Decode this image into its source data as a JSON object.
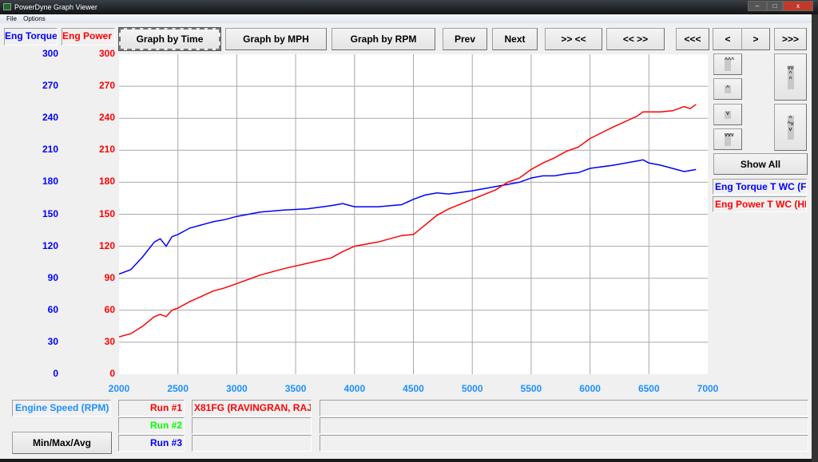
{
  "window": {
    "title": "PowerDyne Graph Viewer",
    "minimize": "–",
    "maximize": "□",
    "close": "x"
  },
  "menu": [
    "File",
    "Options"
  ],
  "toolbar": {
    "graph_by_time": "Graph by Time",
    "graph_by_mph": "Graph by MPH",
    "graph_by_rpm": "Graph by RPM",
    "prev": "Prev",
    "next": "Next",
    "zoom_in": ">> <<",
    "zoom_out": "<< >>",
    "first": "<<<",
    "left": "<",
    "right": ">",
    "last": ">>>"
  },
  "axis_titles": {
    "left1": "Eng Torque",
    "left2": "Eng Power",
    "x": "Engine Speed (RPM)"
  },
  "side": {
    "scroll_up_fast": "^^^",
    "scroll_up": "^",
    "scroll_down": "v",
    "scroll_down_fast": "vvv",
    "expand": "vv^^",
    "shrink": "^^vv",
    "show_all": "Show All",
    "legend": [
      "Eng Torque T WC (F",
      "Eng Power T WC (HI"
    ]
  },
  "bottom": {
    "minmax": "Min/Max/Avg",
    "runs": [
      {
        "label": "Run #1",
        "value": "X81FG (RAVINGRAN, RAJ",
        "color": "#ff0000"
      },
      {
        "label": "Run #2",
        "value": "",
        "color": "#00ff00"
      },
      {
        "label": "Run #3",
        "value": "",
        "color": "#0000ff"
      }
    ]
  },
  "chart_data": {
    "type": "line",
    "xlabel": "Engine Speed (RPM)",
    "xlim": [
      2000,
      7000
    ],
    "xticks": [
      "2000",
      "2500",
      "3000",
      "3500",
      "4000",
      "4500",
      "5000",
      "5500",
      "6000",
      "6500",
      "7000"
    ],
    "ylim": [
      0,
      300
    ],
    "yticks": [
      "0",
      "30",
      "60",
      "90",
      "120",
      "150",
      "180",
      "210",
      "240",
      "270",
      "300"
    ],
    "grid": true,
    "x": [
      2000,
      2100,
      2200,
      2300,
      2350,
      2400,
      2450,
      2500,
      2600,
      2700,
      2800,
      2900,
      3000,
      3200,
      3400,
      3600,
      3800,
      3900,
      4000,
      4200,
      4400,
      4500,
      4600,
      4700,
      4800,
      5000,
      5200,
      5300,
      5400,
      5500,
      5600,
      5700,
      5800,
      5900,
      6000,
      6200,
      6400,
      6450,
      6500,
      6600,
      6700,
      6800,
      6850,
      6900
    ],
    "series": [
      {
        "name": "Eng Torque T WC (F",
        "axis": "Eng Torque",
        "color": "#0000ff",
        "values": [
          94,
          98,
          110,
          124,
          127,
          120,
          129,
          131,
          137,
          140,
          143,
          145,
          148,
          152,
          154,
          155,
          158,
          160,
          157,
          157,
          159,
          164,
          168,
          170,
          169,
          172,
          176,
          178,
          180,
          184,
          186,
          186,
          188,
          189,
          193,
          196,
          200,
          201,
          198,
          196,
          193,
          190,
          191,
          192
        ]
      },
      {
        "name": "Eng Power T WC (HI",
        "axis": "Eng Power",
        "color": "#ff0000",
        "values": [
          35,
          38,
          45,
          54,
          56,
          54,
          60,
          62,
          68,
          73,
          78,
          81,
          85,
          93,
          99,
          104,
          109,
          115,
          120,
          124,
          130,
          131,
          140,
          149,
          155,
          164,
          173,
          180,
          184,
          192,
          198,
          203,
          209,
          213,
          221,
          232,
          242,
          246,
          246,
          246,
          247,
          251,
          249,
          253
        ]
      }
    ]
  }
}
